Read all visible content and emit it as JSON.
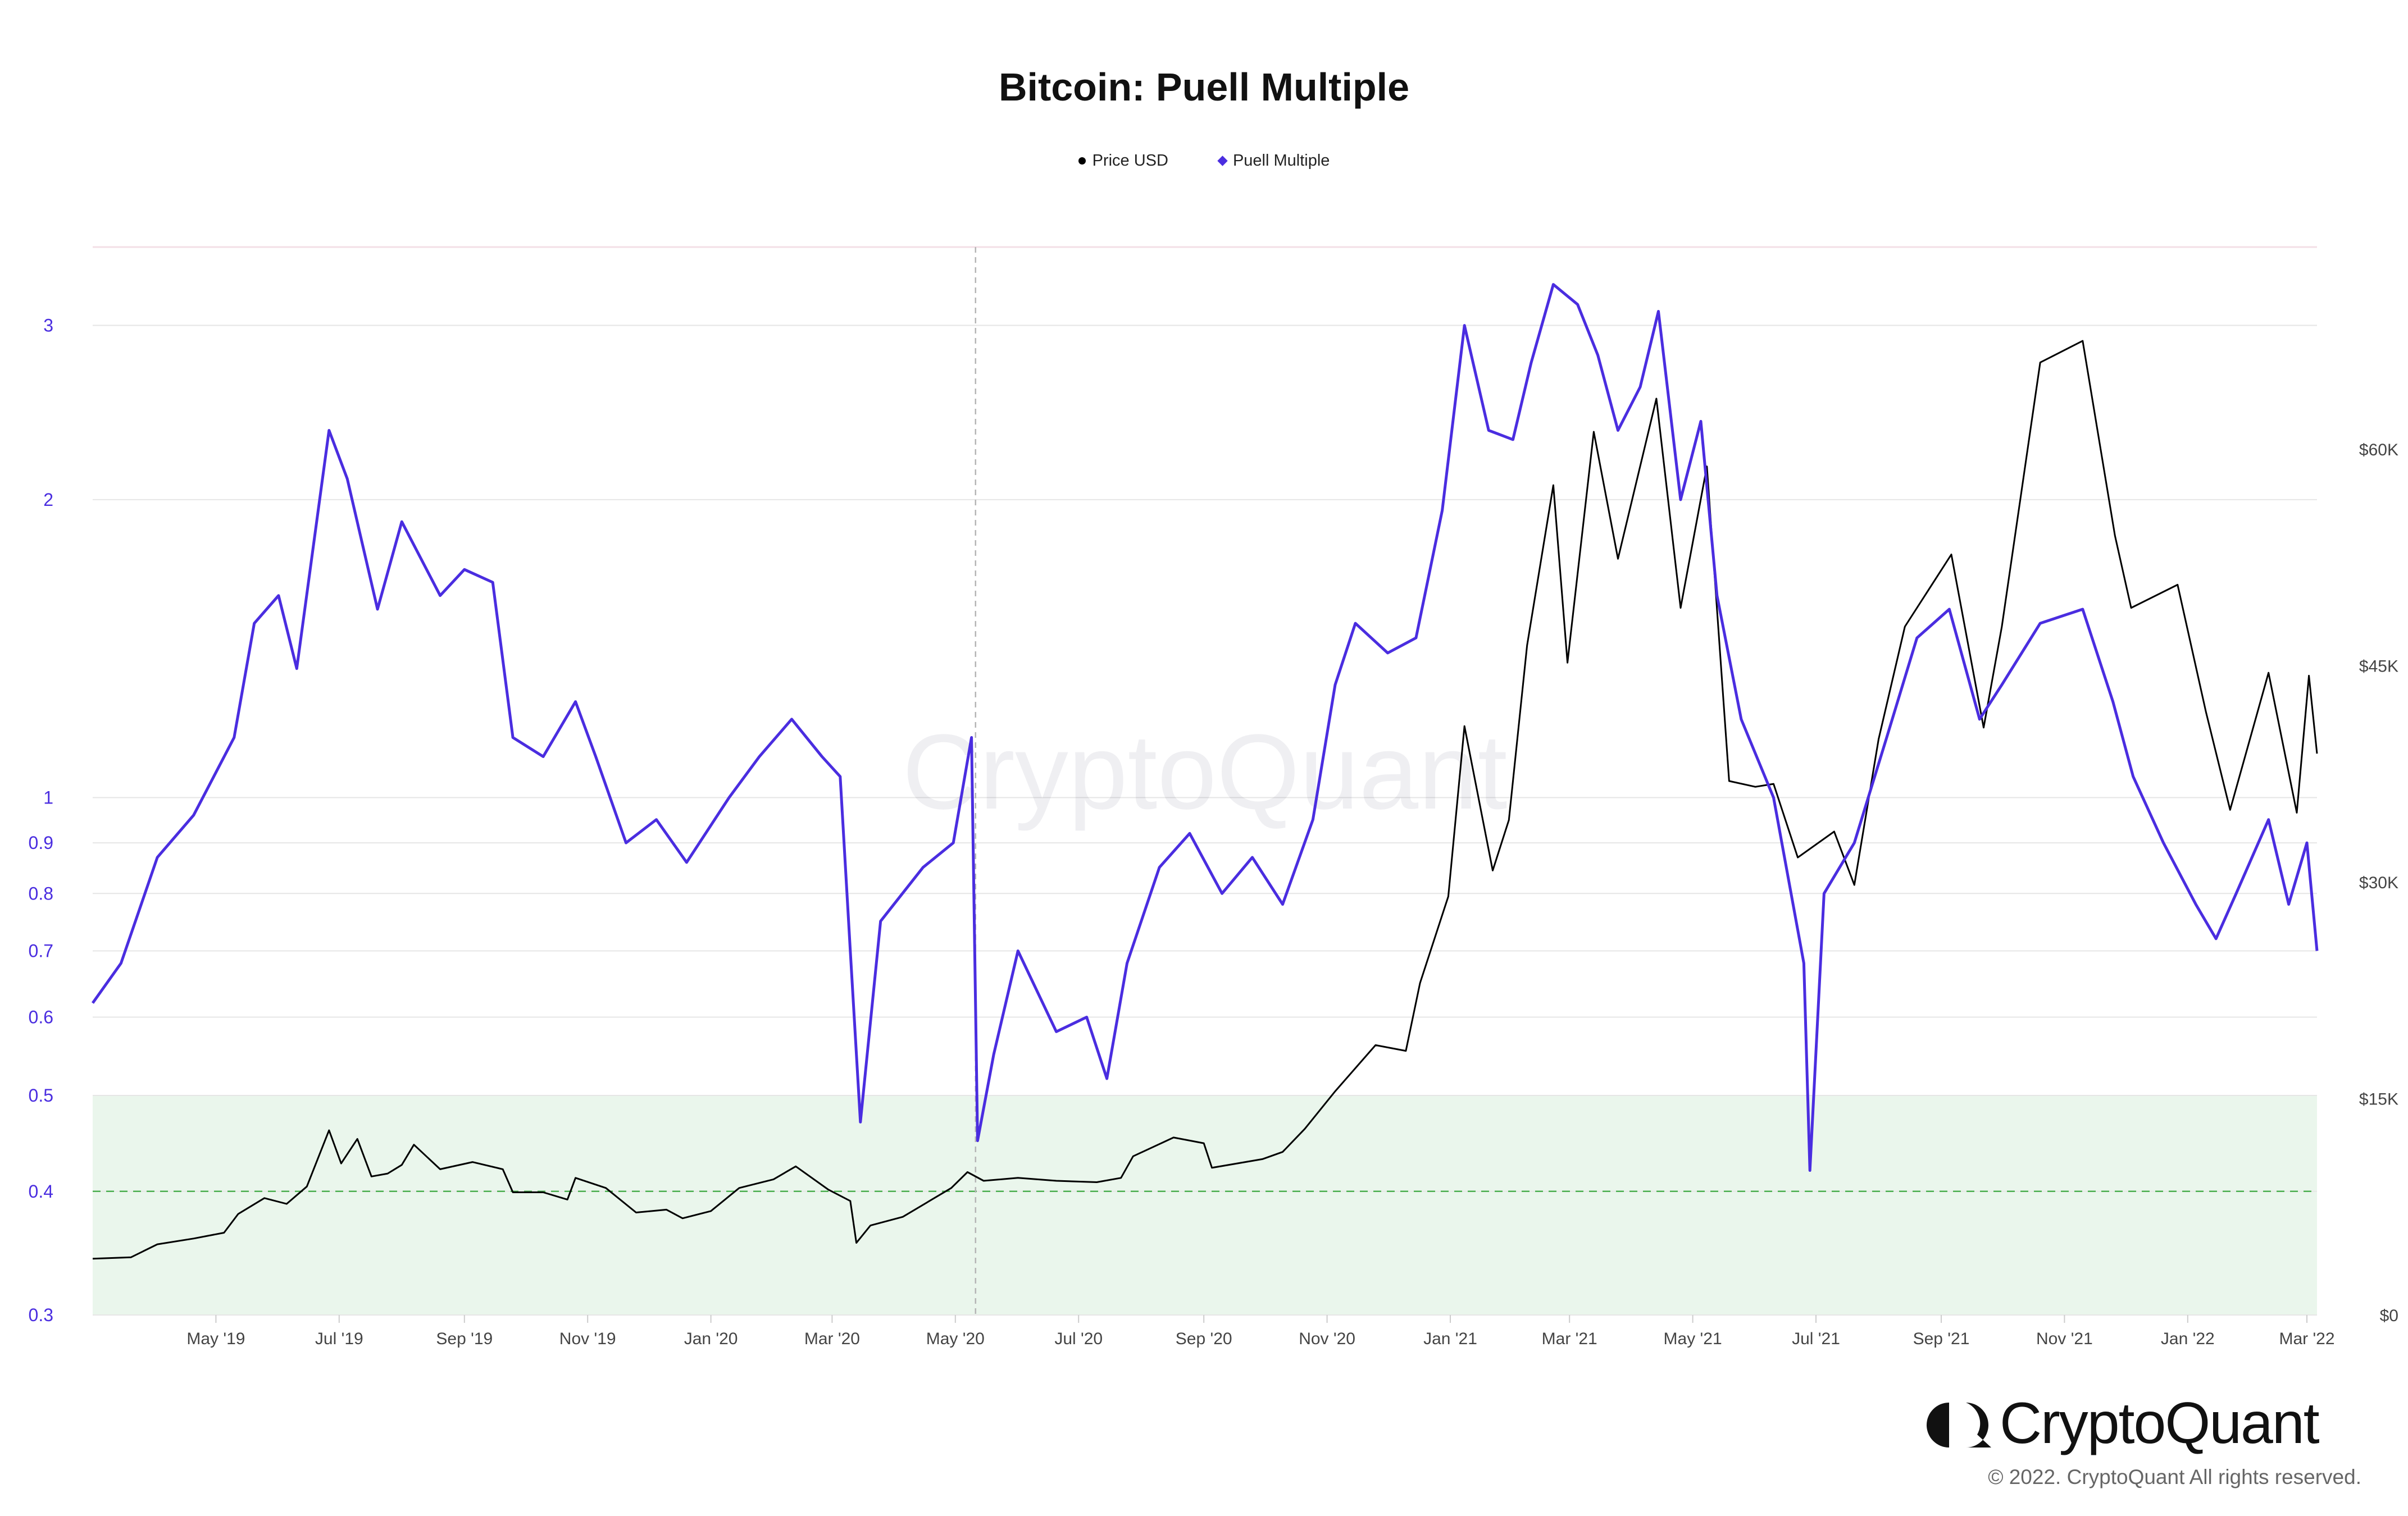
{
  "chart_data": {
    "type": "line",
    "title": "Bitcoin: Puell Multiple",
    "x_range": [
      "2019-03-01",
      "2022-03-06"
    ],
    "x_tick_labels": [
      "May '19",
      "Jul '19",
      "Sep '19",
      "Nov '19",
      "Jan '20",
      "Mar '20",
      "May '20",
      "Jul '20",
      "Sep '20",
      "Nov '20",
      "Jan '21",
      "Mar '21",
      "May '21",
      "Jul '21",
      "Sep '21",
      "Nov '21",
      "Jan '22",
      "Mar '22"
    ],
    "x_tick_dates": [
      "2019-05-01",
      "2019-07-01",
      "2019-09-01",
      "2019-11-01",
      "2020-01-01",
      "2020-03-01",
      "2020-05-01",
      "2020-07-01",
      "2020-09-01",
      "2020-11-01",
      "2021-01-01",
      "2021-03-01",
      "2021-05-01",
      "2021-07-01",
      "2021-09-01",
      "2021-11-01",
      "2022-01-01",
      "2022-03-01"
    ],
    "y_left": {
      "scale": "log",
      "range": [
        0.3,
        3.6
      ],
      "ticks": [
        0.3,
        0.4,
        0.5,
        0.6,
        0.7,
        0.8,
        0.9,
        1,
        2,
        3
      ],
      "tick_labels": [
        "0.3",
        "0.4",
        "0.5",
        "0.6",
        "0.7",
        "0.8",
        "0.9",
        "1",
        "2",
        "3"
      ]
    },
    "y_right": {
      "scale": "linear",
      "range": [
        0,
        74000
      ],
      "ticks": [
        0,
        15000,
        30000,
        45000,
        60000
      ],
      "tick_labels": [
        "$0",
        "$15K",
        "$30K",
        "$45K",
        "$60K"
      ]
    },
    "bands": [
      {
        "from": 0.3,
        "to": 0.5,
        "color": "#eaf6ec"
      }
    ],
    "reference_lines": [
      {
        "axis": "left",
        "value": 0.4,
        "color": "#4caf50",
        "style": "dashed"
      }
    ],
    "crosshair_date": "2020-05-11",
    "grid": true,
    "legend_position": "top-center",
    "series": [
      {
        "name": "Price USD",
        "axis": "right",
        "color": "#000000",
        "points": [
          [
            "2019-03-01",
            3900
          ],
          [
            "2019-03-20",
            4000
          ],
          [
            "2019-04-02",
            4900
          ],
          [
            "2019-04-20",
            5300
          ],
          [
            "2019-05-05",
            5700
          ],
          [
            "2019-05-12",
            7000
          ],
          [
            "2019-05-25",
            8100
          ],
          [
            "2019-06-05",
            7700
          ],
          [
            "2019-06-15",
            8900
          ],
          [
            "2019-06-26",
            12800
          ],
          [
            "2019-07-02",
            10500
          ],
          [
            "2019-07-10",
            12200
          ],
          [
            "2019-07-17",
            9600
          ],
          [
            "2019-07-25",
            9800
          ],
          [
            "2019-08-01",
            10400
          ],
          [
            "2019-08-07",
            11800
          ],
          [
            "2019-08-20",
            10100
          ],
          [
            "2019-09-05",
            10600
          ],
          [
            "2019-09-20",
            10100
          ],
          [
            "2019-09-25",
            8500
          ],
          [
            "2019-10-10",
            8500
          ],
          [
            "2019-10-22",
            8000
          ],
          [
            "2019-10-26",
            9500
          ],
          [
            "2019-11-10",
            8800
          ],
          [
            "2019-11-25",
            7100
          ],
          [
            "2019-12-10",
            7300
          ],
          [
            "2019-12-18",
            6700
          ],
          [
            "2020-01-01",
            7200
          ],
          [
            "2020-01-15",
            8800
          ],
          [
            "2020-02-01",
            9400
          ],
          [
            "2020-02-12",
            10300
          ],
          [
            "2020-02-28",
            8700
          ],
          [
            "2020-03-10",
            7900
          ],
          [
            "2020-03-13",
            5000
          ],
          [
            "2020-03-20",
            6200
          ],
          [
            "2020-04-05",
            6800
          ],
          [
            "2020-04-29",
            8800
          ],
          [
            "2020-05-07",
            9900
          ],
          [
            "2020-05-15",
            9300
          ],
          [
            "2020-06-01",
            9500
          ],
          [
            "2020-06-20",
            9300
          ],
          [
            "2020-07-10",
            9200
          ],
          [
            "2020-07-22",
            9500
          ],
          [
            "2020-07-28",
            11000
          ],
          [
            "2020-08-17",
            12300
          ],
          [
            "2020-09-01",
            11900
          ],
          [
            "2020-09-05",
            10200
          ],
          [
            "2020-09-30",
            10800
          ],
          [
            "2020-10-10",
            11300
          ],
          [
            "2020-10-21",
            12900
          ],
          [
            "2020-11-05",
            15500
          ],
          [
            "2020-11-25",
            18700
          ],
          [
            "2020-12-10",
            18300
          ],
          [
            "2020-12-17",
            23000
          ],
          [
            "2020-12-31",
            29000
          ],
          [
            "2021-01-08",
            40800
          ],
          [
            "2021-01-22",
            30800
          ],
          [
            "2021-01-30",
            34300
          ],
          [
            "2021-02-08",
            46400
          ],
          [
            "2021-02-21",
            57500
          ],
          [
            "2021-02-28",
            45200
          ],
          [
            "2021-03-13",
            61200
          ],
          [
            "2021-03-25",
            52400
          ],
          [
            "2021-04-13",
            63500
          ],
          [
            "2021-04-25",
            49000
          ],
          [
            "2021-05-08",
            58800
          ],
          [
            "2021-05-19",
            37000
          ],
          [
            "2021-06-01",
            36600
          ],
          [
            "2021-06-10",
            36800
          ],
          [
            "2021-06-22",
            31700
          ],
          [
            "2021-07-10",
            33500
          ],
          [
            "2021-07-20",
            29800
          ],
          [
            "2021-08-01",
            39900
          ],
          [
            "2021-08-14",
            47700
          ],
          [
            "2021-09-06",
            52700
          ],
          [
            "2021-09-22",
            40700
          ],
          [
            "2021-10-01",
            47700
          ],
          [
            "2021-10-20",
            66000
          ],
          [
            "2021-11-10",
            67500
          ],
          [
            "2021-11-26",
            54000
          ],
          [
            "2021-12-04",
            49000
          ],
          [
            "2021-12-27",
            50600
          ],
          [
            "2022-01-10",
            41800
          ],
          [
            "2022-01-22",
            35000
          ],
          [
            "2022-02-10",
            44500
          ],
          [
            "2022-02-24",
            34800
          ],
          [
            "2022-03-02",
            44300
          ],
          [
            "2022-03-06",
            38900
          ]
        ]
      },
      {
        "name": "Puell Multiple",
        "axis": "left",
        "color": "#4a2de0",
        "points": [
          [
            "2019-03-01",
            0.62
          ],
          [
            "2019-03-15",
            0.68
          ],
          [
            "2019-04-02",
            0.87
          ],
          [
            "2019-04-20",
            0.96
          ],
          [
            "2019-05-10",
            1.15
          ],
          [
            "2019-05-20",
            1.5
          ],
          [
            "2019-06-01",
            1.6
          ],
          [
            "2019-06-10",
            1.35
          ],
          [
            "2019-06-26",
            2.35
          ],
          [
            "2019-07-05",
            2.1
          ],
          [
            "2019-07-20",
            1.55
          ],
          [
            "2019-08-01",
            1.9
          ],
          [
            "2019-08-20",
            1.6
          ],
          [
            "2019-09-01",
            1.7
          ],
          [
            "2019-09-15",
            1.65
          ],
          [
            "2019-09-25",
            1.15
          ],
          [
            "2019-10-10",
            1.1
          ],
          [
            "2019-10-26",
            1.25
          ],
          [
            "2019-11-05",
            1.1
          ],
          [
            "2019-11-20",
            0.9
          ],
          [
            "2019-12-05",
            0.95
          ],
          [
            "2019-12-20",
            0.86
          ],
          [
            "2020-01-10",
            1.0
          ],
          [
            "2020-01-25",
            1.1
          ],
          [
            "2020-02-10",
            1.2
          ],
          [
            "2020-02-25",
            1.1
          ],
          [
            "2020-03-05",
            1.05
          ],
          [
            "2020-03-10",
            0.7
          ],
          [
            "2020-03-15",
            0.47
          ],
          [
            "2020-03-25",
            0.75
          ],
          [
            "2020-04-15",
            0.85
          ],
          [
            "2020-04-30",
            0.9
          ],
          [
            "2020-05-09",
            1.15
          ],
          [
            "2020-05-12",
            0.45
          ],
          [
            "2020-05-20",
            0.55
          ],
          [
            "2020-06-01",
            0.7
          ],
          [
            "2020-06-20",
            0.58
          ],
          [
            "2020-07-05",
            0.6
          ],
          [
            "2020-07-15",
            0.52
          ],
          [
            "2020-07-25",
            0.68
          ],
          [
            "2020-08-10",
            0.85
          ],
          [
            "2020-08-25",
            0.92
          ],
          [
            "2020-09-10",
            0.8
          ],
          [
            "2020-09-25",
            0.87
          ],
          [
            "2020-10-10",
            0.78
          ],
          [
            "2020-10-25",
            0.95
          ],
          [
            "2020-11-05",
            1.3
          ],
          [
            "2020-11-15",
            1.5
          ],
          [
            "2020-12-01",
            1.4
          ],
          [
            "2020-12-15",
            1.45
          ],
          [
            "2020-12-28",
            1.95
          ],
          [
            "2021-01-08",
            3.0
          ],
          [
            "2021-01-20",
            2.35
          ],
          [
            "2021-02-01",
            2.3
          ],
          [
            "2021-02-10",
            2.75
          ],
          [
            "2021-02-21",
            3.3
          ],
          [
            "2021-03-05",
            3.15
          ],
          [
            "2021-03-15",
            2.8
          ],
          [
            "2021-03-25",
            2.35
          ],
          [
            "2021-04-05",
            2.6
          ],
          [
            "2021-04-14",
            3.1
          ],
          [
            "2021-04-25",
            2.0
          ],
          [
            "2021-05-05",
            2.4
          ],
          [
            "2021-05-13",
            1.6
          ],
          [
            "2021-05-25",
            1.2
          ],
          [
            "2021-06-10",
            1.0
          ],
          [
            "2021-06-25",
            0.68
          ],
          [
            "2021-06-28",
            0.42
          ],
          [
            "2021-07-05",
            0.8
          ],
          [
            "2021-07-20",
            0.9
          ],
          [
            "2021-08-05",
            1.15
          ],
          [
            "2021-08-20",
            1.45
          ],
          [
            "2021-09-05",
            1.55
          ],
          [
            "2021-09-20",
            1.2
          ],
          [
            "2021-10-01",
            1.3
          ],
          [
            "2021-10-20",
            1.5
          ],
          [
            "2021-11-10",
            1.55
          ],
          [
            "2021-11-25",
            1.25
          ],
          [
            "2021-12-05",
            1.05
          ],
          [
            "2021-12-20",
            0.9
          ],
          [
            "2022-01-05",
            0.78
          ],
          [
            "2022-01-15",
            0.72
          ],
          [
            "2022-01-25",
            0.8
          ],
          [
            "2022-02-10",
            0.95
          ],
          [
            "2022-02-20",
            0.78
          ],
          [
            "2022-03-01",
            0.9
          ],
          [
            "2022-03-06",
            0.7
          ]
        ]
      }
    ]
  },
  "brand": {
    "name": "CryptoQuant",
    "watermark": "CryptoQuant",
    "copyright": "© 2022. CryptoQuant All rights reserved."
  },
  "colors": {
    "puell": "#4a2de0",
    "price": "#000000",
    "band": "#eaf6ec",
    "ref_line": "#4caf50",
    "grid": "#e6e6e6",
    "axis_text": "#444444"
  }
}
